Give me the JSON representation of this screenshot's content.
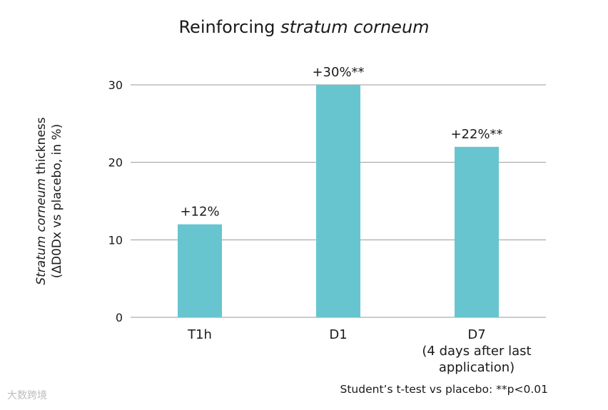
{
  "chart_data": {
    "type": "bar",
    "title": {
      "plain": "Reinforcing ",
      "italic": "stratum corneum"
    },
    "ylabel": {
      "line1_italic": "Stratum corneum",
      "line1_rest": " thickness",
      "line2": "(ΔD0Dx vs placebo, in %)"
    },
    "xlabel": "",
    "categories": [
      {
        "lines": [
          "T1h"
        ]
      },
      {
        "lines": [
          "D1"
        ]
      },
      {
        "lines": [
          "D7",
          "(4 days after last",
          "application)"
        ]
      }
    ],
    "values": [
      12,
      30,
      22
    ],
    "data_labels": [
      "+12%",
      "+30%**",
      "+22%**"
    ],
    "ylim": [
      0,
      30
    ],
    "yticks": [
      0,
      10,
      20,
      30
    ],
    "grid": true,
    "bar_color": "#67c5d0",
    "grid_color": "#9a9a9a",
    "note": "Student’s t-test vs placebo: **p<0.01"
  },
  "watermark": "大数跨境"
}
